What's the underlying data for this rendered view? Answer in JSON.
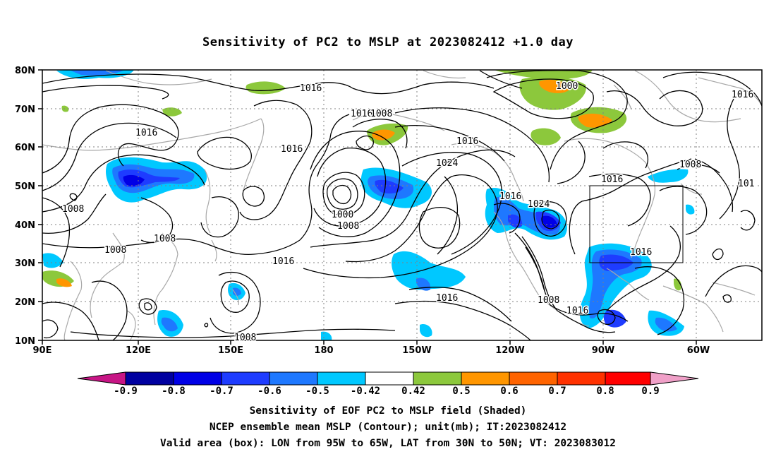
{
  "title": "Sensitivity of PC2 to MSLP at 2023082412 +1.0 day",
  "axes": {
    "lat_labels": [
      "80N",
      "70N",
      "60N",
      "50N",
      "40N",
      "30N",
      "20N",
      "10N"
    ],
    "lon_labels": [
      "90E",
      "120E",
      "150E",
      "180",
      "150W",
      "120W",
      "90W",
      "60W"
    ]
  },
  "contour_labels": [
    "1016",
    "1016",
    "1016",
    "1016",
    "1016",
    "1016",
    "1016",
    "1016",
    "1016",
    "1016",
    "1016",
    "1016",
    "1008",
    "1008",
    "1008",
    "1008",
    "1008",
    "1008",
    "1008",
    "1008",
    "1000",
    "1000",
    "1024",
    "1024",
    "101"
  ],
  "colorbar": {
    "labels": [
      "-0.9",
      "-0.8",
      "-0.7",
      "-0.6",
      "-0.5",
      "-0.42",
      "0.42",
      "0.5",
      "0.6",
      "0.7",
      "0.8",
      "0.9"
    ],
    "colors": [
      "#c71585",
      "#0000a0",
      "#0000e6",
      "#1e3cff",
      "#1e78ff",
      "#00c8ff",
      "#ffffff",
      "#8cc83c",
      "#ff9600",
      "#ff6400",
      "#ff3200",
      "#ff0000",
      "#f0a0c8"
    ]
  },
  "captions": {
    "line1": "Sensitivity of EOF PC2 to MSLP field (Shaded)",
    "line2": "NCEP ensemble mean MSLP (Contour); unit(mb); IT:2023082412",
    "line3": "Valid area (box): LON from 95W to 65W, LAT from 30N to 50N; VT: 2023083012"
  }
}
